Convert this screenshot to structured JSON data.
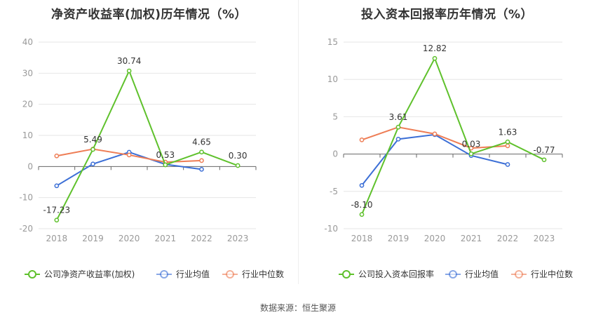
{
  "source_text": "数据来源：恒生聚源",
  "chart_data": [
    {
      "type": "line",
      "title": "净资产收益率(加权)历年情况（%）",
      "categories": [
        "2018",
        "2019",
        "2020",
        "2021",
        "2022",
        "2023"
      ],
      "ylim": [
        -20,
        40
      ],
      "yticks": [
        -20,
        -10,
        0,
        10,
        20,
        30,
        40
      ],
      "grid": true,
      "legend_position": "bottom",
      "series": [
        {
          "name": "公司净资产收益率(加权)",
          "color": "#5fc12c",
          "values": [
            -17.23,
            5.49,
            30.74,
            0.53,
            4.65,
            0.3
          ],
          "labels": [
            "-17.23",
            "5.49",
            "30.74",
            "0.53",
            "4.65",
            "0.30"
          ]
        },
        {
          "name": "行业均值",
          "color": "#3c6fd6",
          "values": [
            -6.2,
            0.8,
            4.6,
            0.7,
            -0.9,
            null
          ]
        },
        {
          "name": "行业中位数",
          "color": "#ee7d55",
          "values": [
            3.4,
            5.6,
            3.7,
            1.4,
            1.9,
            null
          ]
        }
      ]
    },
    {
      "type": "line",
      "title": "投入资本回报率历年情况（%）",
      "categories": [
        "2018",
        "2019",
        "2020",
        "2021",
        "2022",
        "2023"
      ],
      "ylim": [
        -10,
        15
      ],
      "yticks": [
        -10,
        -5,
        0,
        5,
        10,
        15
      ],
      "grid": true,
      "legend_position": "bottom",
      "series": [
        {
          "name": "公司投入资本回报率",
          "color": "#5fc12c",
          "values": [
            -8.1,
            3.61,
            12.82,
            0.03,
            1.63,
            -0.77
          ],
          "labels": [
            "-8.10",
            "3.61",
            "12.82",
            "0.03",
            "1.63",
            "-0.77"
          ]
        },
        {
          "name": "行业均值",
          "color": "#3c6fd6",
          "values": [
            -4.2,
            2.0,
            2.6,
            -0.2,
            -1.4,
            null
          ]
        },
        {
          "name": "行业中位数",
          "color": "#ee7d55",
          "values": [
            1.9,
            3.6,
            2.7,
            0.8,
            1.1,
            null
          ]
        }
      ]
    }
  ]
}
